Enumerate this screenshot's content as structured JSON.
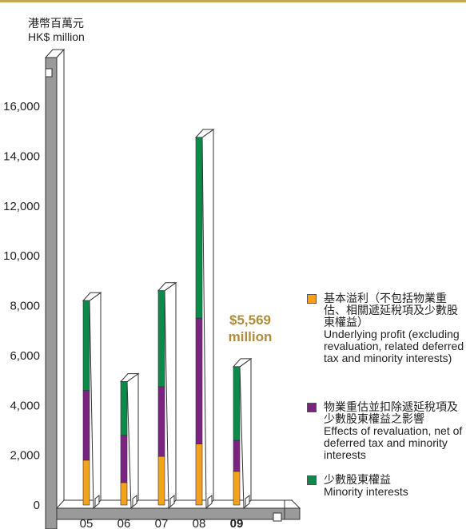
{
  "chart_data": {
    "type": "bar",
    "stacked": true,
    "unit_label_zh": "港幣百萬元",
    "unit_label_en": "HK$ million",
    "categories": [
      "05",
      "06",
      "07",
      "08",
      "09"
    ],
    "highlight_category": "09",
    "ylim": [
      0,
      16000
    ],
    "yticks": [
      "0",
      "2,000",
      "4,000",
      "6,000",
      "8,000",
      "10,000",
      "12,000",
      "14,000",
      "16,000"
    ],
    "series": [
      {
        "name_zh": "基本溢利（不包括物業重估、相關遞延稅項及少數股東權益）",
        "name_en": "Underlying profit (excluding revaluation, related deferred tax and minority interests)",
        "values": [
          1800,
          900,
          1950,
          2450,
          1350
        ],
        "color": "#f5a21b"
      },
      {
        "name_zh": "物業重估並扣除遞延稅項及少數股東權益之影響",
        "name_en": "Effects of revaluation, net of deferred tax and minority interests",
        "values": [
          2800,
          1900,
          2800,
          5050,
          1250
        ],
        "color": "#7b2380"
      },
      {
        "name_zh": "少數股東權益",
        "name_en": "Minority interests",
        "values": [
          3600,
          2150,
          3850,
          7250,
          2950
        ],
        "color": "#0b8a4a"
      }
    ],
    "annotation": {
      "value": "$5,569",
      "unit": "million"
    }
  }
}
